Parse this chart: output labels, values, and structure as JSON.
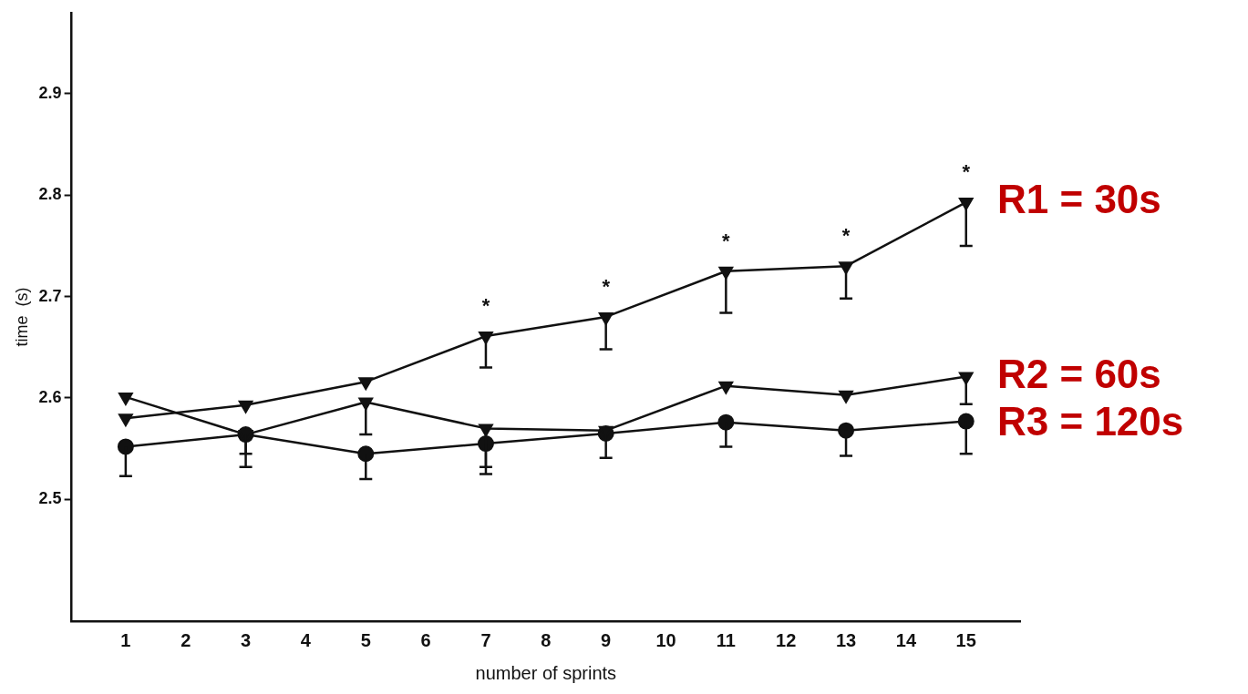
{
  "chart_data": {
    "type": "line",
    "xlabel": "number of sprints",
    "ylabel": "time  (s)",
    "x": [
      1,
      3,
      5,
      7,
      9,
      11,
      13,
      15
    ],
    "xlim": [
      0.1,
      15.9
    ],
    "xticks": [
      1,
      2,
      3,
      4,
      5,
      6,
      7,
      8,
      9,
      10,
      11,
      12,
      13,
      14,
      15
    ],
    "ylim": [
      2.38,
      2.98
    ],
    "yticks": [
      2.5,
      2.6,
      2.7,
      2.8,
      2.9
    ],
    "grid": false,
    "legend": false,
    "series": [
      {
        "name": "R1 = 30s",
        "color": "#111111",
        "marker": "triangle",
        "values": [
          2.58,
          2.593,
          2.616,
          2.661,
          2.68,
          2.725,
          2.73,
          2.793
        ],
        "errors": [
          null,
          null,
          null,
          [
            2.63,
            2.661
          ],
          [
            2.648,
            2.68
          ],
          [
            2.684,
            2.725
          ],
          [
            2.698,
            2.73
          ],
          [
            2.75,
            2.793
          ]
        ]
      },
      {
        "name": "R2 = 60s",
        "color": "#111111",
        "marker": "triangle",
        "values": [
          2.601,
          2.564,
          2.596,
          2.57,
          2.568,
          2.612,
          2.603,
          2.621
        ],
        "errors": [
          null,
          [
            2.545,
            2.564
          ],
          [
            2.564,
            2.596
          ],
          [
            2.525,
            2.57
          ],
          null,
          null,
          null,
          [
            2.594,
            2.621
          ]
        ]
      },
      {
        "name": "R3 = 120s",
        "color": "#111111",
        "marker": "circle",
        "values": [
          2.552,
          2.564,
          2.545,
          2.555,
          2.565,
          2.576,
          2.568,
          2.577
        ],
        "errors": [
          [
            2.523,
            2.552
          ],
          [
            2.532,
            2.564
          ],
          [
            2.52,
            2.545
          ],
          [
            2.532,
            2.555
          ],
          [
            2.541,
            2.565
          ],
          [
            2.552,
            2.576
          ],
          [
            2.543,
            2.568
          ],
          [
            2.545,
            2.577
          ]
        ]
      }
    ],
    "annotations": [
      {
        "text": "*",
        "x": 7,
        "y": 2.661
      },
      {
        "text": "*",
        "x": 9,
        "y": 2.68
      },
      {
        "text": "*",
        "x": 11,
        "y": 2.725
      },
      {
        "text": "*",
        "x": 13,
        "y": 2.73
      },
      {
        "text": "*",
        "x": 15,
        "y": 2.793
      }
    ]
  }
}
